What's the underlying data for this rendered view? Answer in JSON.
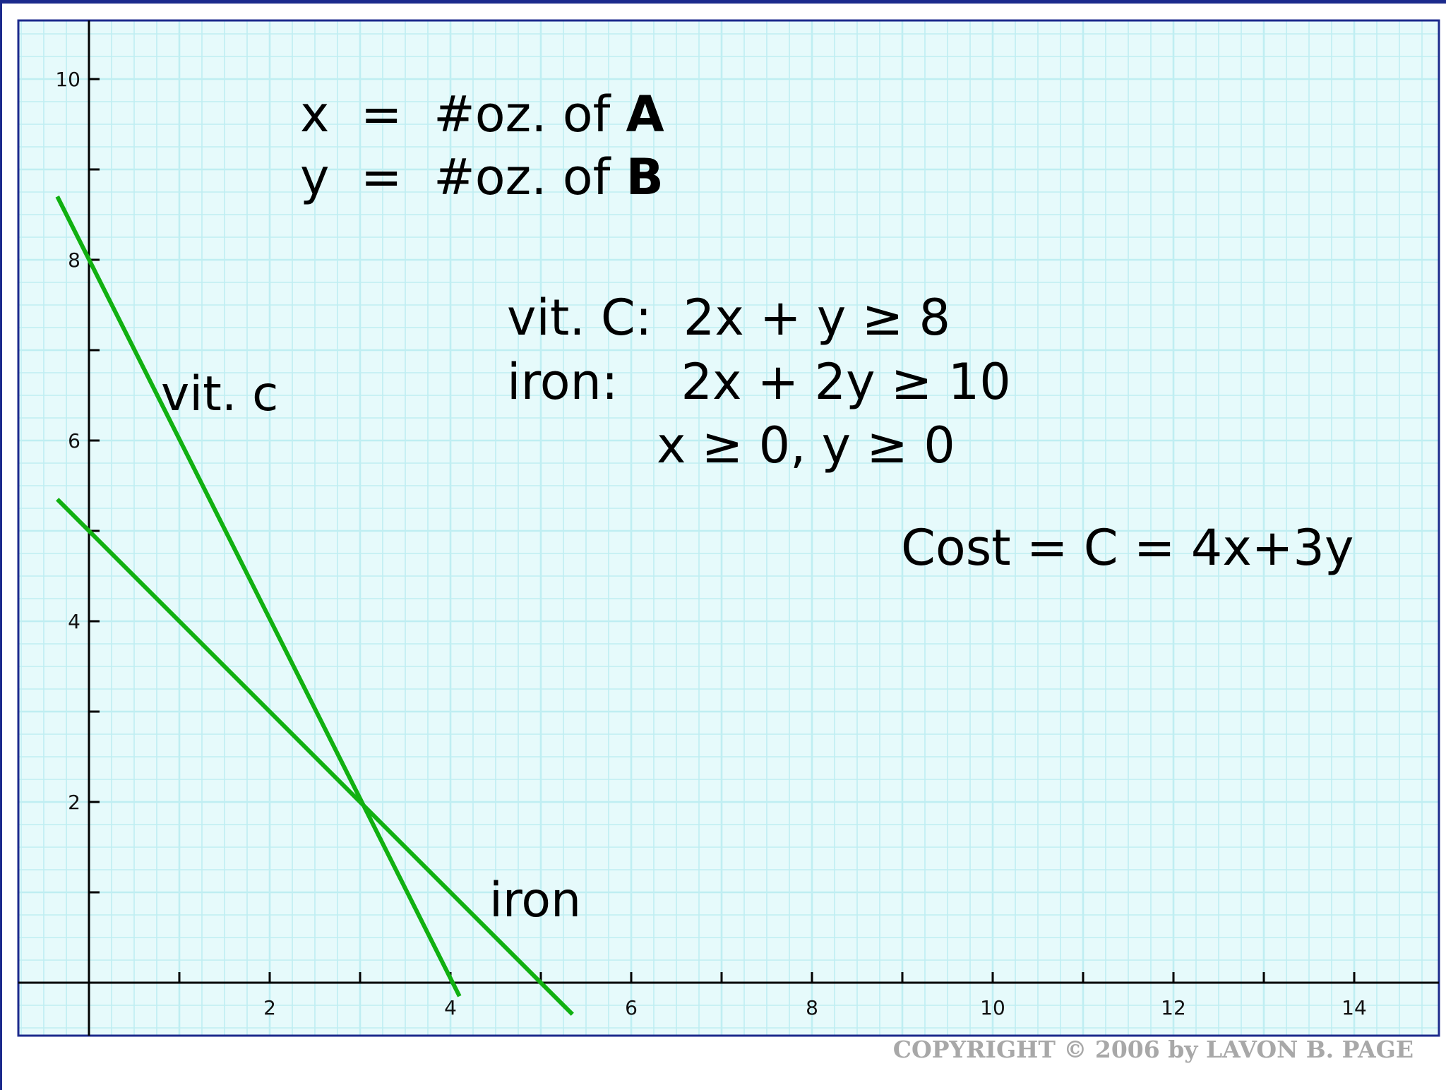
{
  "chart_data": {
    "type": "line",
    "title": "",
    "xlabel": "",
    "ylabel": "",
    "xlim": [
      -0.8,
      14.9
    ],
    "ylim": [
      -0.6,
      10.6
    ],
    "x_ticks": [
      2,
      4,
      6,
      8,
      10,
      12,
      14
    ],
    "y_ticks": [
      2,
      4,
      6,
      8,
      10
    ],
    "grid": true,
    "series": [
      {
        "name": "vit. c",
        "color": "#11b011",
        "points": [
          [
            -0.35,
            8.7
          ],
          [
            4.1,
            -0.15
          ]
        ]
      },
      {
        "name": "iron",
        "color": "#11b011",
        "points": [
          [
            -0.35,
            5.35
          ],
          [
            5.35,
            -0.35
          ]
        ]
      }
    ],
    "annotations": {
      "definitions": [
        {
          "lead": "x  =  #oz. of ",
          "bold": "A"
        },
        {
          "lead": "y  =  #oz. of ",
          "bold": "B"
        }
      ],
      "constraints": [
        "vit. C:  2x + y ≥ 8",
        "iron:    2x + 2y ≥ 10",
        "x ≥ 0, y ≥ 0"
      ],
      "objective": "Cost = C = 4x+3y",
      "series_labels": {
        "vit_c": "vit. c",
        "iron": "iron"
      },
      "label_color": "#ee2233"
    }
  },
  "copyright": "COPYRIGHT © 2006 by LAVON B. PAGE",
  "colors": {
    "grid_background": "#e6fafb",
    "grid_line": "#bfeef2",
    "frame": "#1c2a8c",
    "axis": "#000000"
  }
}
